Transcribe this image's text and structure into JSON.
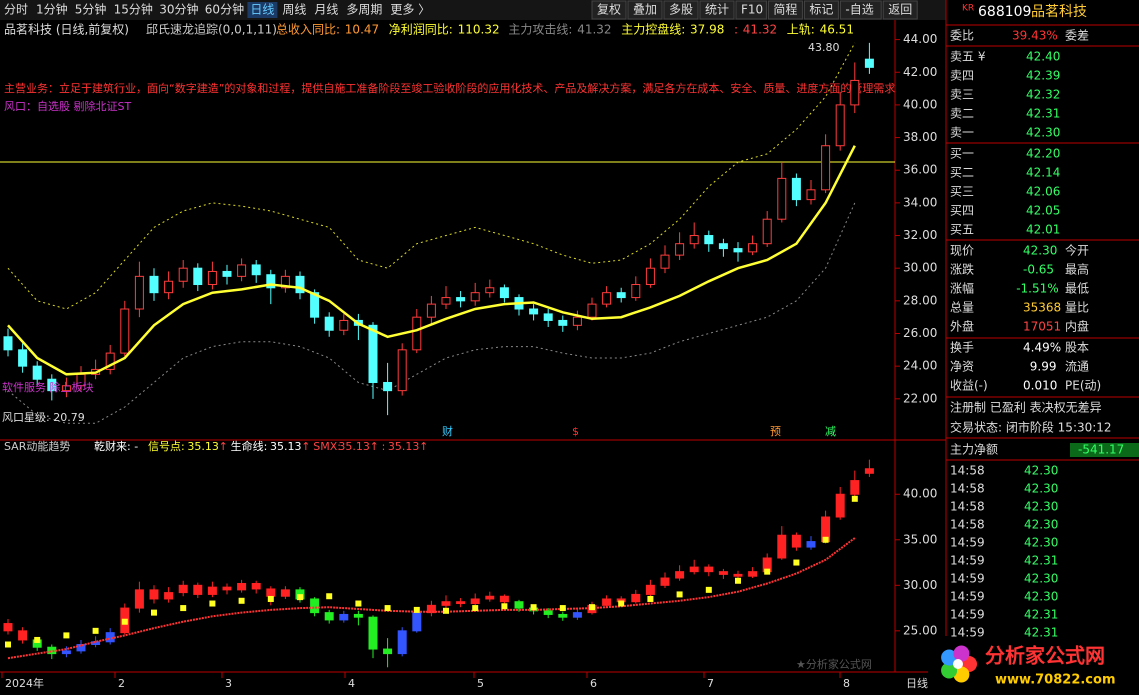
{
  "toolbar": {
    "periods": [
      "分时",
      "1分钟",
      "5分钟",
      "15分钟",
      "30分钟",
      "60分钟",
      "日线",
      "周线",
      "月线",
      "多周期",
      "更多 〉"
    ],
    "active_index": 6,
    "actions": [
      "复权",
      "叠加",
      "多股",
      "统计",
      "F10",
      "简程",
      "标记",
      "-自选",
      "返回"
    ]
  },
  "main": {
    "title": "品茗科技 (日线,前复权)",
    "indicator": "邱氏速龙追踪(0,0,1,11)",
    "stats": [
      {
        "label": "总收入同比:",
        "value": 10.47,
        "color": "#ff9933"
      },
      {
        "label": "净利润同比:",
        "value": 110.32,
        "color": "#ffff33"
      },
      {
        "label": "主力攻击线:",
        "value": 41.32,
        "color": "#888888"
      },
      {
        "label": "主力控盘线:",
        "value": 37.98,
        "color": "#ffff33"
      },
      {
        "label": ":",
        "value": 41.32,
        "color": "#ff4444"
      },
      {
        "label": "上轨:",
        "value": 46.51,
        "color": "#ffff33"
      }
    ],
    "business": "主营业务：立足于建筑行业，面向“数字建造”的对象和过程，提供自施工准备阶段至竣工验收阶段的应用化技术、产品及解决方案，满足各方在成本、安全、质量、进度方面的管理需求",
    "wind": "风口：自选股 剔除北证ST",
    "sector": "软件服务 除上板块",
    "wind_star": "风口星级: 20.79",
    "peak_label": "43.80",
    "markers": [
      {
        "text": "财",
        "color": "#33ccff"
      },
      {
        "text": "$",
        "color": "#ff3333"
      },
      {
        "text": "预",
        "color": "#ff9933"
      },
      {
        "text": "减",
        "color": "#33ff66"
      }
    ],
    "ylim": [
      19.6,
      45.2
    ],
    "yticks": [
      {
        "value": 44,
        "label": "44.00"
      },
      {
        "value": 42,
        "label": "42.00"
      },
      {
        "value": 40,
        "label": "40.00"
      },
      {
        "value": 38,
        "label": "38.00"
      },
      {
        "value": 36,
        "label": "36.00"
      },
      {
        "value": 34,
        "label": "34.00"
      },
      {
        "value": 32,
        "label": "32.00"
      },
      {
        "value": 30,
        "label": "30.00"
      },
      {
        "value": 28,
        "label": "28.00"
      },
      {
        "value": 26,
        "label": "26.00"
      },
      {
        "value": 24,
        "label": "24.00"
      },
      {
        "value": 22,
        "label": "22.00"
      }
    ],
    "hline": 36.5,
    "candles": [
      [
        25.8,
        25.0,
        26.3,
        24.6
      ],
      [
        25.0,
        24.0,
        25.4,
        23.6
      ],
      [
        24.0,
        23.2,
        24.3,
        22.8
      ],
      [
        23.2,
        22.5,
        23.5,
        21.9
      ],
      [
        22.5,
        22.8,
        23.3,
        22.1
      ],
      [
        22.8,
        23.5,
        24.0,
        22.5
      ],
      [
        23.5,
        23.8,
        24.4,
        23.2
      ],
      [
        23.8,
        24.8,
        25.3,
        23.5
      ],
      [
        24.8,
        27.5,
        28.0,
        24.6
      ],
      [
        27.5,
        29.5,
        30.4,
        27.0
      ],
      [
        29.5,
        28.5,
        30.0,
        28.0
      ],
      [
        28.5,
        29.2,
        29.8,
        28.1
      ],
      [
        29.2,
        30.0,
        30.5,
        28.8
      ],
      [
        30.0,
        29.0,
        30.3,
        28.6
      ],
      [
        29.0,
        29.8,
        30.4,
        28.7
      ],
      [
        29.8,
        29.5,
        30.2,
        29.0
      ],
      [
        29.5,
        30.2,
        30.6,
        29.2
      ],
      [
        30.2,
        29.6,
        30.5,
        29.1
      ],
      [
        29.6,
        28.8,
        29.9,
        27.8
      ],
      [
        28.8,
        29.5,
        29.9,
        28.5
      ],
      [
        29.5,
        28.5,
        29.8,
        28.1
      ],
      [
        28.5,
        27.0,
        28.7,
        26.6
      ],
      [
        27.0,
        26.2,
        27.3,
        25.8
      ],
      [
        26.2,
        26.8,
        27.2,
        25.9
      ],
      [
        26.8,
        26.5,
        27.2,
        25.6
      ],
      [
        26.5,
        23.0,
        26.7,
        22.0
      ],
      [
        23.0,
        22.5,
        24.2,
        21.0
      ],
      [
        22.5,
        25.0,
        25.4,
        22.2
      ],
      [
        25.0,
        27.0,
        27.5,
        24.8
      ],
      [
        27.0,
        27.8,
        28.3,
        26.6
      ],
      [
        27.8,
        28.2,
        28.9,
        27.5
      ],
      [
        28.2,
        28.0,
        28.6,
        27.6
      ],
      [
        28.0,
        28.5,
        29.1,
        27.7
      ],
      [
        28.5,
        28.8,
        29.3,
        28.2
      ],
      [
        28.8,
        28.2,
        29.0,
        27.9
      ],
      [
        28.2,
        27.5,
        28.4,
        27.1
      ],
      [
        27.5,
        27.2,
        27.8,
        26.8
      ],
      [
        27.2,
        26.8,
        27.5,
        26.4
      ],
      [
        26.8,
        26.5,
        27.1,
        26.1
      ],
      [
        26.5,
        27.0,
        27.4,
        26.2
      ],
      [
        27.0,
        27.8,
        28.2,
        26.8
      ],
      [
        27.8,
        28.5,
        28.9,
        27.6
      ],
      [
        28.5,
        28.2,
        28.8,
        27.9
      ],
      [
        28.2,
        29.0,
        29.5,
        28.0
      ],
      [
        29.0,
        30.0,
        30.6,
        28.8
      ],
      [
        30.0,
        30.8,
        31.4,
        29.7
      ],
      [
        30.8,
        31.5,
        32.2,
        30.5
      ],
      [
        31.5,
        32.0,
        32.8,
        31.2
      ],
      [
        32.0,
        31.5,
        32.3,
        31.0
      ],
      [
        31.5,
        31.2,
        31.8,
        30.7
      ],
      [
        31.2,
        31.0,
        31.6,
        30.4
      ],
      [
        31.0,
        31.5,
        32.0,
        30.8
      ],
      [
        31.5,
        33.0,
        33.5,
        31.3
      ],
      [
        33.0,
        35.5,
        36.5,
        32.8
      ],
      [
        35.5,
        34.2,
        35.8,
        33.8
      ],
      [
        34.2,
        34.8,
        35.4,
        33.9
      ],
      [
        34.8,
        37.5,
        38.2,
        34.6
      ],
      [
        37.5,
        40.0,
        40.8,
        37.2
      ],
      [
        40.0,
        41.5,
        42.6,
        39.5
      ],
      [
        42.8,
        42.3,
        43.8,
        41.9
      ]
    ],
    "ma": [
      26.5,
      24.5,
      23.5,
      23.6,
      24.5,
      26.5,
      27.8,
      28.5,
      28.7,
      29.0,
      28.8,
      28.0,
      26.6,
      25.8,
      26.2,
      26.9,
      27.5,
      27.8,
      27.9,
      27.3,
      26.9,
      27.0,
      27.6,
      28.3,
      29.2,
      30.0,
      30.5,
      31.5,
      34.0,
      37.5
    ],
    "upper": [
      30,
      28,
      27.5,
      28.5,
      30.5,
      32.5,
      33.5,
      34,
      33.8,
      33.5,
      33,
      32.5,
      30.5,
      30,
      31.5,
      32,
      32.5,
      32,
      31.5,
      30.8,
      30.3,
      30.5,
      31.5,
      33,
      35,
      36.5,
      37,
      38.5,
      40.5,
      43.8
    ],
    "lower": [
      22.5,
      21,
      20.5,
      20.5,
      21.5,
      23,
      24.5,
      25.2,
      25.5,
      25.5,
      25.2,
      24.5,
      23,
      22.5,
      23.5,
      24.5,
      25,
      25.2,
      25.2,
      24.8,
      24.5,
      24.5,
      24.8,
      25.5,
      26,
      26.5,
      27,
      28,
      30,
      34
    ]
  },
  "sub": {
    "title": "SAR动能趋势",
    "extra": "乾财来: -",
    "arrow": "↑",
    "items": [
      {
        "label": "信号点:",
        "value": 35.13,
        "color": "#ffff33"
      },
      {
        "label": "生命线:",
        "value": 35.13,
        "color": "#ffffff"
      },
      {
        "label": "SMX:",
        "value": 35.13,
        "color": "#ff4444"
      },
      {
        "label": ":",
        "value": 35.13,
        "color": "#ff4444"
      }
    ],
    "ylim": [
      20.7,
      44.2
    ],
    "yticks": [
      {
        "value": 40,
        "label": "40.00"
      },
      {
        "value": 35,
        "label": "35.00"
      },
      {
        "value": 30,
        "label": "30.00"
      },
      {
        "value": 25,
        "label": "25.00"
      }
    ],
    "sar": [
      23.5,
      24,
      24.5,
      25,
      26,
      27,
      27.5,
      28,
      28.3,
      28.5,
      28.7,
      28.8,
      28,
      27.5,
      27.3,
      27.2,
      27.5,
      27.7,
      27.6,
      27.5,
      27.6,
      28,
      28.5,
      29,
      29.5,
      30.5,
      31.5,
      32.5,
      35,
      39.5
    ],
    "life": [
      22,
      22.5,
      23,
      23.8,
      24.5,
      25.3,
      26,
      26.6,
      27,
      27.3,
      27.5,
      27.6,
      27.4,
      27.2,
      27.1,
      27.1,
      27.2,
      27.3,
      27.3,
      27.4,
      27.5,
      27.7,
      28,
      28.3,
      28.7,
      29.3,
      30.2,
      31.3,
      32.8,
      35.2
    ]
  },
  "xaxis": {
    "labels": [
      "2024年",
      "2",
      "3",
      "4",
      "5",
      "6",
      "7",
      "8"
    ],
    "period": "日线"
  },
  "watermark": "★分析家公式网",
  "logo": {
    "name": "分析家公式网",
    "url": "www.70822.com"
  },
  "quote": {
    "badge": "KR",
    "code": "688109",
    "name": "品茗科技",
    "ratio": {
      "label": "委比",
      "value": "39.43%",
      "label2": "委差"
    },
    "asks": [
      {
        "label": "卖五 ¥",
        "price": "42.40"
      },
      {
        "label": "卖四",
        "price": "42.39"
      },
      {
        "label": "卖三",
        "price": "42.32"
      },
      {
        "label": "卖二",
        "price": "42.31"
      },
      {
        "label": "卖一",
        "price": "42.30"
      }
    ],
    "bids": [
      {
        "label": "买一",
        "price": "42.20"
      },
      {
        "label": "买二",
        "price": "42.14"
      },
      {
        "label": "买三",
        "price": "42.06"
      },
      {
        "label": "买四",
        "price": "42.05"
      },
      {
        "label": "买五",
        "price": "42.01"
      }
    ],
    "stats": [
      {
        "label": "现价",
        "value": "42.30",
        "label2": "今开",
        "color": "#33ff66"
      },
      {
        "label": "涨跌",
        "value": "-0.65",
        "label2": "最高",
        "color": "#33ff66"
      },
      {
        "label": "涨幅",
        "value": "-1.51%",
        "label2": "最低",
        "color": "#33ff66"
      },
      {
        "label": "总量",
        "value": "35368",
        "label2": "量比",
        "color": "#ffcc33"
      },
      {
        "label": "外盘",
        "value": "17051",
        "label2": "内盘",
        "color": "#ff4444"
      }
    ],
    "stats2": [
      {
        "label": "换手",
        "value": "4.49%",
        "label2": "股本",
        "color": "#ffffff"
      },
      {
        "label": "净资",
        "value": "9.99",
        "label2": "流通",
        "color": "#ffffff"
      },
      {
        "label": "收益(-)",
        "value": "0.010",
        "label2": "PE(动)",
        "color": "#ffffff"
      }
    ],
    "tags": "注册制 已盈利 表决权无差异",
    "status": "交易状态: 闭市阶段 15:30:12",
    "net": {
      "label": "主力净额",
      "value": "-541.17"
    },
    "ticks": [
      [
        "14:58",
        "42.30"
      ],
      [
        "14:58",
        "42.30"
      ],
      [
        "14:58",
        "42.30"
      ],
      [
        "14:58",
        "42.30"
      ],
      [
        "14:59",
        "42.30"
      ],
      [
        "14:59",
        "42.31"
      ],
      [
        "14:59",
        "42.30"
      ],
      [
        "14:59",
        "42.30"
      ],
      [
        "14:59",
        "42.31"
      ],
      [
        "14:59",
        "42.31"
      ]
    ]
  }
}
